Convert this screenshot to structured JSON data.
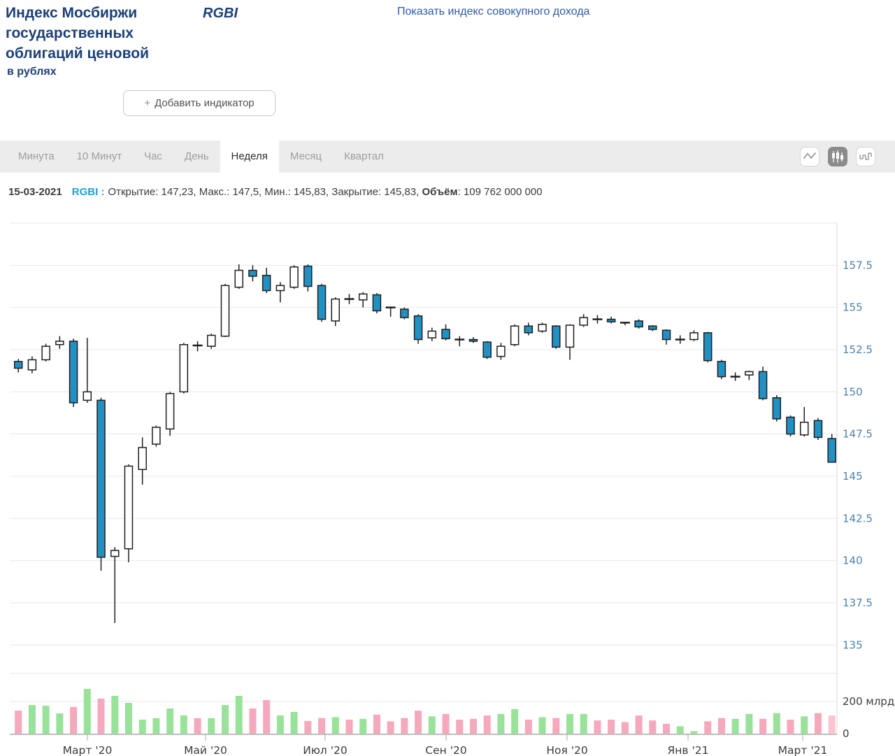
{
  "header": {
    "title": "Индекс Мосбиржи государственных облигаций ценовой",
    "subtitle": "в рублях",
    "ticker": "RGBI",
    "toggle_link": "Показать индекс совокупного дохода",
    "add_indicator_plus": "+",
    "add_indicator_label": "Добавить индикатор"
  },
  "toolbar": {
    "tabs": [
      {
        "label": "Минута",
        "active": false
      },
      {
        "label": "10 Минут",
        "active": false
      },
      {
        "label": "Час",
        "active": false
      },
      {
        "label": "День",
        "active": false
      },
      {
        "label": "Неделя",
        "active": true
      },
      {
        "label": "Месяц",
        "active": false
      },
      {
        "label": "Квартал",
        "active": false
      }
    ],
    "chart_type_buttons": [
      {
        "icon": "line-chart-icon",
        "selected": false
      },
      {
        "icon": "candlestick-chart-icon",
        "selected": true
      },
      {
        "icon": "ohlc-chart-icon",
        "selected": false
      }
    ]
  },
  "info_bar": {
    "date": "15-03-2021",
    "ticker_label": "RGBI :",
    "ohlc_text": "Открытие: 147,23, Макс.: 147,5, Мин.: 145,83, Закрытие: 145,83,",
    "volume_label": "Объём",
    "volume_value": ": 109 762 000 000"
  },
  "colors": {
    "accent_navy": "#1c4077",
    "link_blue": "#2d5aa5",
    "ticker_azure": "#239fd4",
    "up_fill": "#ffffff",
    "down_fill": "#2191c4",
    "candle_border": "#1f1f1f",
    "vol_up": "#99e29a",
    "vol_down": "#f6a8bd",
    "vol_last": "#fac4d2",
    "grid": "#e8e8e8",
    "pane_border": "#d8d8d8",
    "axis_line": "#a8a8a8",
    "y_label": "#4d82ab",
    "x_label": "#3c3c3c"
  },
  "chart_data": {
    "type": "candlestick+volume",
    "period": "weekly",
    "y_axis": {
      "ticks": [
        157.5,
        155,
        152.5,
        150,
        147.5,
        145,
        142.5,
        140,
        137.5,
        135
      ],
      "top_value": 160,
      "grid": true
    },
    "x_axis": {
      "labels": [
        "Март '20",
        "Май '20",
        "Июл '20",
        "Сен '20",
        "Ноя '20",
        "Янв '21",
        "Март '21"
      ],
      "tick_x": [
        125,
        294,
        465,
        638,
        811,
        984,
        1148
      ]
    },
    "volume_axis": {
      "gridline_label": "200 млрд",
      "zero_label": "0",
      "gridline_value": 200
    },
    "candles_legend": "[open, high, low, close, volume_bln, volume_color g|p|lp]",
    "candles": [
      [
        151.8,
        151.95,
        151.15,
        151.4,
        140,
        "p"
      ],
      [
        151.3,
        152.1,
        151.1,
        151.9,
        174,
        "g"
      ],
      [
        151.9,
        152.85,
        151.8,
        152.7,
        170,
        "g"
      ],
      [
        152.8,
        153.3,
        152.55,
        153.0,
        123,
        "g"
      ],
      [
        153.0,
        153.15,
        149.1,
        149.35,
        162,
        "p"
      ],
      [
        149.5,
        153.2,
        149.35,
        150.0,
        272,
        "g"
      ],
      [
        149.5,
        149.65,
        139.4,
        140.2,
        213,
        "p"
      ],
      [
        140.25,
        140.8,
        136.3,
        140.6,
        230,
        "g"
      ],
      [
        140.7,
        145.7,
        139.9,
        145.6,
        187,
        "g"
      ],
      [
        145.4,
        147.3,
        144.5,
        146.7,
        85,
        "g"
      ],
      [
        146.9,
        148.0,
        146.75,
        147.9,
        94,
        "g"
      ],
      [
        147.8,
        150.0,
        147.4,
        149.9,
        153,
        "g"
      ],
      [
        150.0,
        152.9,
        149.9,
        152.8,
        111,
        "g"
      ],
      [
        152.75,
        153.0,
        152.4,
        152.75,
        94,
        "p"
      ],
      [
        152.7,
        153.45,
        152.55,
        153.35,
        94,
        "g"
      ],
      [
        153.3,
        156.4,
        153.25,
        156.3,
        174,
        "g"
      ],
      [
        156.2,
        157.55,
        156.1,
        157.2,
        230,
        "g"
      ],
      [
        157.2,
        157.5,
        156.55,
        156.85,
        153,
        "p"
      ],
      [
        156.9,
        157.35,
        155.85,
        156.0,
        204,
        "p"
      ],
      [
        156.0,
        156.5,
        155.3,
        156.3,
        111,
        "g"
      ],
      [
        156.2,
        157.5,
        156.1,
        157.4,
        132,
        "g"
      ],
      [
        157.45,
        157.55,
        155.95,
        156.25,
        77,
        "p"
      ],
      [
        156.3,
        156.4,
        154.15,
        154.3,
        95,
        "p"
      ],
      [
        154.2,
        155.6,
        153.9,
        155.5,
        100,
        "g"
      ],
      [
        155.5,
        155.8,
        155.2,
        155.5,
        85,
        "p"
      ],
      [
        155.45,
        155.9,
        155.0,
        155.8,
        90,
        "g"
      ],
      [
        155.75,
        155.85,
        154.65,
        154.8,
        115,
        "p"
      ],
      [
        155.0,
        155.05,
        154.45,
        155.0,
        75,
        "p"
      ],
      [
        154.9,
        155.0,
        154.3,
        154.4,
        95,
        "p"
      ],
      [
        154.5,
        154.6,
        152.85,
        153.1,
        140,
        "p"
      ],
      [
        153.2,
        153.8,
        153.0,
        153.6,
        105,
        "g"
      ],
      [
        153.7,
        154.0,
        153.05,
        153.15,
        120,
        "p"
      ],
      [
        153.1,
        153.3,
        152.7,
        153.1,
        85,
        "p"
      ],
      [
        153.1,
        153.25,
        152.9,
        153.0,
        90,
        "p"
      ],
      [
        152.95,
        153.0,
        151.95,
        152.05,
        110,
        "p"
      ],
      [
        152.1,
        152.9,
        151.9,
        152.7,
        120,
        "g"
      ],
      [
        152.8,
        154.0,
        152.7,
        153.9,
        150,
        "g"
      ],
      [
        153.9,
        154.1,
        153.35,
        153.5,
        85,
        "p"
      ],
      [
        153.6,
        154.1,
        153.5,
        154.0,
        100,
        "g"
      ],
      [
        153.9,
        153.95,
        152.55,
        152.65,
        95,
        "p"
      ],
      [
        152.65,
        154.0,
        151.9,
        153.95,
        120,
        "g"
      ],
      [
        153.95,
        154.6,
        153.85,
        154.4,
        120,
        "g"
      ],
      [
        154.3,
        154.55,
        154.05,
        154.3,
        80,
        "p"
      ],
      [
        154.3,
        154.45,
        154.05,
        154.15,
        85,
        "p"
      ],
      [
        154.1,
        154.15,
        153.95,
        154.1,
        70,
        "p"
      ],
      [
        154.2,
        154.3,
        153.75,
        153.85,
        110,
        "p"
      ],
      [
        153.9,
        153.95,
        153.6,
        153.7,
        80,
        "p"
      ],
      [
        153.65,
        153.7,
        152.8,
        153.1,
        60,
        "p"
      ],
      [
        153.1,
        153.35,
        152.85,
        153.1,
        45,
        "g"
      ],
      [
        153.1,
        153.65,
        153.0,
        153.5,
        15,
        "g"
      ],
      [
        153.5,
        153.55,
        151.75,
        151.85,
        75,
        "p"
      ],
      [
        151.8,
        151.9,
        150.75,
        150.9,
        95,
        "p"
      ],
      [
        150.9,
        151.15,
        150.65,
        150.9,
        90,
        "g"
      ],
      [
        151.0,
        151.25,
        150.7,
        151.2,
        120,
        "g"
      ],
      [
        151.2,
        151.5,
        149.5,
        149.6,
        90,
        "p"
      ],
      [
        149.65,
        149.8,
        148.25,
        148.4,
        125,
        "g"
      ],
      [
        148.5,
        148.6,
        147.35,
        147.5,
        85,
        "p"
      ],
      [
        147.45,
        149.1,
        147.35,
        148.2,
        105,
        "g"
      ],
      [
        148.3,
        148.45,
        147.15,
        147.3,
        125,
        "p"
      ],
      [
        147.23,
        147.5,
        145.83,
        145.83,
        110,
        "lp"
      ]
    ]
  }
}
